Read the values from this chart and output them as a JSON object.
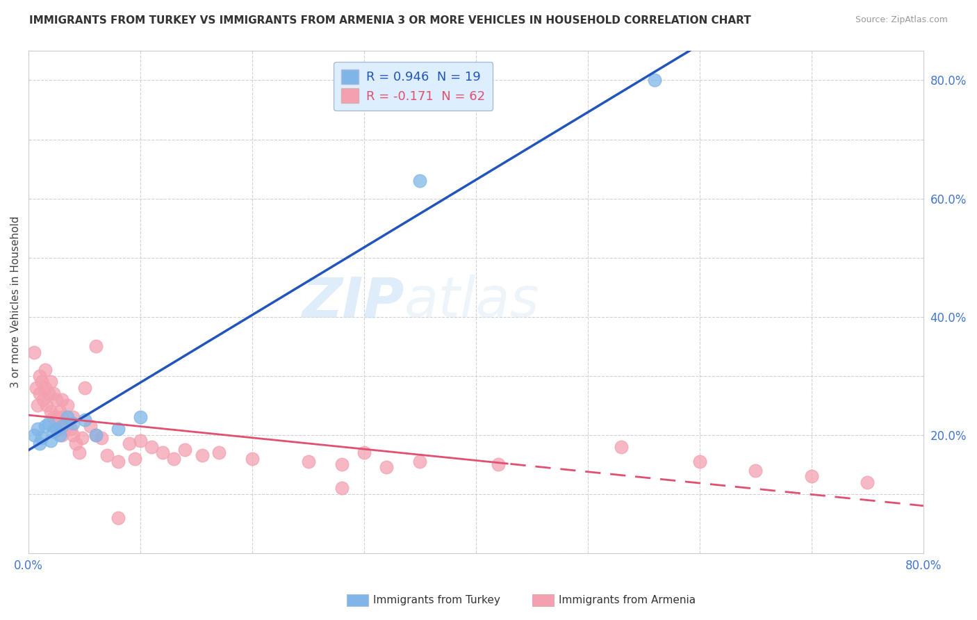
{
  "title": "IMMIGRANTS FROM TURKEY VS IMMIGRANTS FROM ARMENIA 3 OR MORE VEHICLES IN HOUSEHOLD CORRELATION CHART",
  "source": "Source: ZipAtlas.com",
  "ylabel": "3 or more Vehicles in Household",
  "xlim": [
    0.0,
    0.8
  ],
  "ylim": [
    0.0,
    0.85
  ],
  "background_color": "#ffffff",
  "turkey_color": "#7eb6e8",
  "armenia_color": "#f4a0b0",
  "turkey_line_color": "#2255bb",
  "armenia_line_color": "#e05070",
  "turkey_R": 0.946,
  "turkey_N": 19,
  "armenia_R": -0.171,
  "armenia_N": 62,
  "turkey_scatter_x": [
    0.005,
    0.008,
    0.01,
    0.012,
    0.015,
    0.018,
    0.02,
    0.022,
    0.025,
    0.028,
    0.03,
    0.035,
    0.04,
    0.05,
    0.06,
    0.08,
    0.1,
    0.35,
    0.56
  ],
  "turkey_scatter_y": [
    0.2,
    0.21,
    0.185,
    0.195,
    0.215,
    0.22,
    0.19,
    0.205,
    0.21,
    0.2,
    0.215,
    0.23,
    0.22,
    0.225,
    0.2,
    0.21,
    0.23,
    0.63,
    0.8
  ],
  "armenia_scatter_x": [
    0.005,
    0.007,
    0.008,
    0.01,
    0.01,
    0.012,
    0.013,
    0.015,
    0.015,
    0.016,
    0.018,
    0.02,
    0.02,
    0.022,
    0.022,
    0.025,
    0.025,
    0.025,
    0.028,
    0.028,
    0.03,
    0.03,
    0.03,
    0.032,
    0.035,
    0.035,
    0.038,
    0.04,
    0.04,
    0.042,
    0.045,
    0.048,
    0.05,
    0.055,
    0.06,
    0.065,
    0.07,
    0.08,
    0.09,
    0.095,
    0.1,
    0.11,
    0.12,
    0.13,
    0.14,
    0.155,
    0.17,
    0.2,
    0.25,
    0.3,
    0.35,
    0.28,
    0.06,
    0.32,
    0.42,
    0.53,
    0.6,
    0.65,
    0.7,
    0.75,
    0.28,
    0.08
  ],
  "armenia_scatter_y": [
    0.34,
    0.28,
    0.25,
    0.27,
    0.3,
    0.29,
    0.26,
    0.31,
    0.28,
    0.25,
    0.27,
    0.24,
    0.29,
    0.23,
    0.27,
    0.26,
    0.23,
    0.21,
    0.24,
    0.21,
    0.2,
    0.23,
    0.26,
    0.21,
    0.22,
    0.25,
    0.21,
    0.2,
    0.23,
    0.185,
    0.17,
    0.195,
    0.28,
    0.215,
    0.2,
    0.195,
    0.165,
    0.155,
    0.185,
    0.16,
    0.19,
    0.18,
    0.17,
    0.16,
    0.175,
    0.165,
    0.17,
    0.16,
    0.155,
    0.17,
    0.155,
    0.15,
    0.35,
    0.145,
    0.15,
    0.18,
    0.155,
    0.14,
    0.13,
    0.12,
    0.11,
    0.06
  ],
  "xtick_vals": [
    0.0,
    0.1,
    0.2,
    0.3,
    0.4,
    0.5,
    0.6,
    0.7,
    0.8
  ],
  "ytick_vals": [
    0.0,
    0.1,
    0.2,
    0.3,
    0.4,
    0.5,
    0.6,
    0.7,
    0.8
  ],
  "grid_color": "#cccccc",
  "watermark_zip": "ZIP",
  "watermark_atlas": "atlas",
  "legend_facecolor": "#ddeeff",
  "legend_edgecolor": "#aabbcc"
}
